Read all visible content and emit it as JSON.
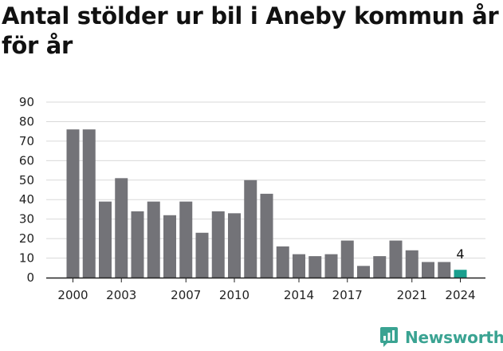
{
  "chart_data": {
    "type": "bar",
    "title": "Antal stölder ur bil i Aneby kommun år för år",
    "categories": [
      "2000",
      "2001",
      "2002",
      "2003",
      "2004",
      "2005",
      "2006",
      "2007",
      "2008",
      "2009",
      "2010",
      "2011",
      "2012",
      "2013",
      "2014",
      "2015",
      "2016",
      "2017",
      "2018",
      "2019",
      "2020",
      "2021",
      "2022",
      "2023",
      "2024"
    ],
    "values": [
      76,
      76,
      39,
      51,
      34,
      39,
      32,
      39,
      23,
      34,
      33,
      50,
      43,
      16,
      12,
      11,
      12,
      19,
      6,
      11,
      19,
      14,
      8,
      8,
      4
    ],
    "x_tick_labels": [
      "2000",
      "2003",
      "2007",
      "2010",
      "2014",
      "2017",
      "2021",
      "2024"
    ],
    "y_ticks": [
      0,
      10,
      20,
      30,
      40,
      50,
      60,
      70,
      80,
      90
    ],
    "ylim": [
      0,
      90
    ],
    "grid": true,
    "highlight_index": 24,
    "highlight_label": "4",
    "colors": {
      "bar": "#737378",
      "highlight": "#1a9f8e",
      "grid": "#d9d9d9",
      "axis": "#222222"
    }
  },
  "brand": {
    "name": "Newsworthy",
    "icon": "newsworthy-logo-icon",
    "color": "#3aa392"
  }
}
